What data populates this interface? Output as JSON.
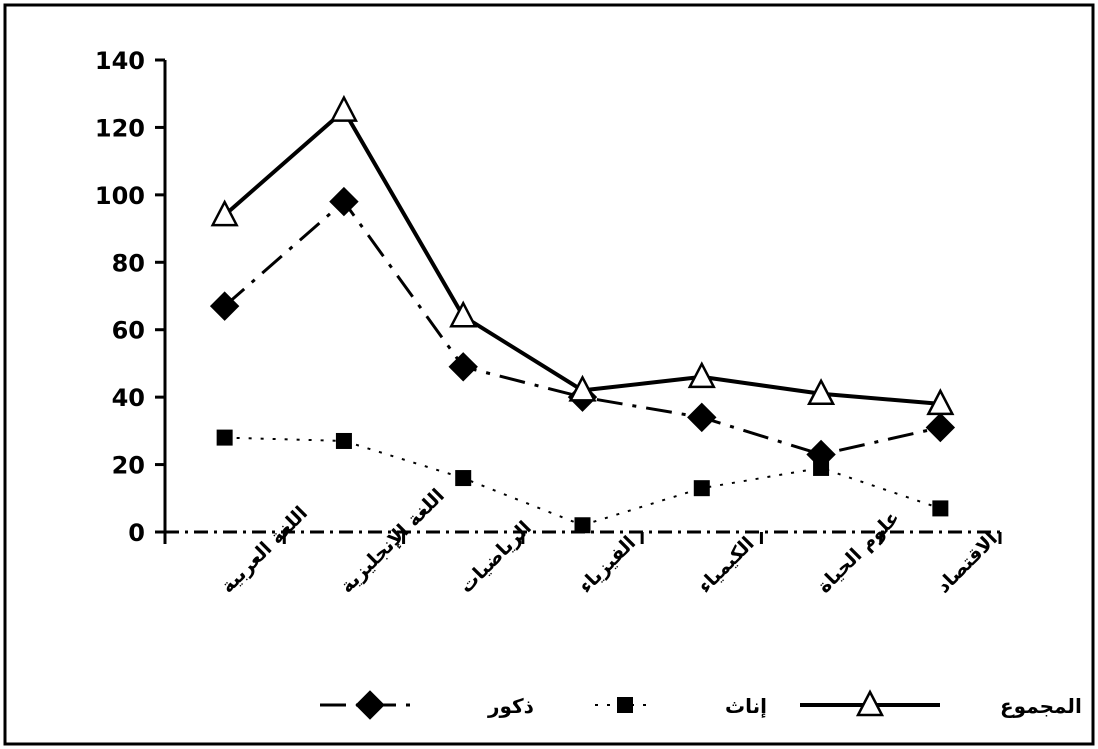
{
  "chart_data": {
    "type": "line",
    "categories": [
      "اللغة العربية",
      "اللغة الإنجليزية",
      "الرياضيات",
      "الفيزياء",
      "الكيمياء",
      "علوم الحياة",
      "الاقتصاد"
    ],
    "series": [
      {
        "name": "ذكور",
        "values": [
          67,
          98,
          49,
          40,
          34,
          23,
          31
        ],
        "line": "dash-dot",
        "marker": "diamond",
        "color": "#000000"
      },
      {
        "name": "إناث",
        "values": [
          28,
          27,
          16,
          2,
          13,
          19,
          7
        ],
        "line": "dotted",
        "marker": "square",
        "color": "#000000"
      },
      {
        "name": "المجموع",
        "values": [
          94,
          125,
          64,
          42,
          46,
          41,
          38
        ],
        "line": "solid",
        "marker": "triangle",
        "color": "#000000"
      }
    ],
    "ylim": [
      0,
      140
    ],
    "yticks": [
      0,
      20,
      40,
      60,
      80,
      100,
      120,
      140
    ],
    "ytick_labels": [
      "0",
      "20",
      "40",
      "60",
      "80",
      "100",
      "120",
      "140"
    ],
    "xlabel": "",
    "ylabel": "",
    "grid": false,
    "legend_position": "bottom"
  }
}
